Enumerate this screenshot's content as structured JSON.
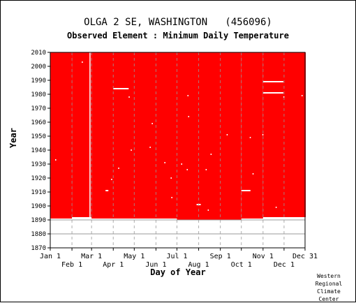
{
  "chart_data": {
    "type": "heatmap",
    "title": "OLGA 2 SE, WASHINGTON   (456096)",
    "subtitle": "Observed Element : Minimum Daily Temperature",
    "xlabel": "Day of Year",
    "ylabel": "Year",
    "xlim": [
      1,
      365
    ],
    "ylim": [
      1870,
      2010
    ],
    "y_ticks": [
      1870,
      1880,
      1890,
      1900,
      1910,
      1920,
      1930,
      1940,
      1950,
      1960,
      1970,
      1980,
      1990,
      2000,
      2010
    ],
    "x_ticks_row1": [
      {
        "label": "Jan 1",
        "day": 1
      },
      {
        "label": "Mar 1",
        "day": 60
      },
      {
        "label": "May 1",
        "day": 121
      },
      {
        "label": "Jul 1",
        "day": 182
      },
      {
        "label": "Sep 1",
        "day": 244
      },
      {
        "label": "Nov 1",
        "day": 305
      },
      {
        "label": "Dec 31",
        "day": 365
      }
    ],
    "x_ticks_row2": [
      {
        "label": "Feb 1",
        "day": 32
      },
      {
        "label": "Apr 1",
        "day": 91
      },
      {
        "label": "Jun 1",
        "day": 152
      },
      {
        "label": "Aug 1",
        "day": 213
      },
      {
        "label": "Oct 1",
        "day": 274
      },
      {
        "label": "Dec 1",
        "day": 335
      }
    ],
    "record_start": [
      {
        "day_start": 1,
        "day_end": 31,
        "year": 1891
      },
      {
        "day_start": 32,
        "day_end": 59,
        "year": 1892
      },
      {
        "day_start": 60,
        "day_end": 181,
        "year": 1891
      },
      {
        "day_start": 182,
        "day_end": 273,
        "year": 1890
      },
      {
        "day_start": 274,
        "day_end": 304,
        "year": 1891
      },
      {
        "day_start": 305,
        "day_end": 365,
        "year": 1892
      }
    ],
    "record_end_year": 2010,
    "missing_data": [
      {
        "day_start": 57,
        "day_end": 58,
        "year_start": 1891,
        "year_end": 2010
      },
      {
        "day_start": 91,
        "day_end": 113,
        "year_start": 1984,
        "year_end": 1984
      },
      {
        "day_start": 305,
        "day_end": 334,
        "year_start": 1989,
        "year_end": 1989
      },
      {
        "day_start": 305,
        "day_end": 334,
        "year_start": 1981,
        "year_end": 1981
      },
      {
        "day_start": 334,
        "day_end": 335,
        "year_start": 1978,
        "year_end": 1978
      },
      {
        "day_start": 274,
        "day_end": 287,
        "year_start": 1911,
        "year_end": 1911
      },
      {
        "day_start": 210,
        "day_end": 216,
        "year_start": 1901,
        "year_end": 1901
      },
      {
        "day_start": 80,
        "day_end": 84,
        "year_start": 1911,
        "year_end": 1911
      },
      {
        "day_start": 305,
        "day_end": 365,
        "year_start": 1891,
        "year_end": 1891
      },
      {
        "day_start": 304,
        "day_end": 305,
        "year_start": 1951,
        "year_end": 1951
      },
      {
        "day_start": 46,
        "day_end": 47,
        "year_start": 2003,
        "year_end": 2003
      },
      {
        "day_start": 360,
        "day_end": 361,
        "year_start": 1979,
        "year_end": 1979
      },
      {
        "day_start": 197,
        "day_end": 198,
        "year_start": 1979,
        "year_end": 1979
      },
      {
        "day_start": 198,
        "day_end": 199,
        "year_start": 1964,
        "year_end": 1964
      },
      {
        "day_start": 146,
        "day_end": 147,
        "year_start": 1959,
        "year_end": 1959
      },
      {
        "day_start": 143,
        "day_end": 144,
        "year_start": 1942,
        "year_end": 1942
      },
      {
        "day_start": 116,
        "day_end": 117,
        "year_start": 1940,
        "year_end": 1940
      },
      {
        "day_start": 8,
        "day_end": 9,
        "year_start": 1933,
        "year_end": 1933
      },
      {
        "day_start": 164,
        "day_end": 165,
        "year_start": 1931,
        "year_end": 1931
      },
      {
        "day_start": 188,
        "day_end": 189,
        "year_start": 1930,
        "year_end": 1930
      },
      {
        "day_start": 98,
        "day_end": 99,
        "year_start": 1927,
        "year_end": 1927
      },
      {
        "day_start": 223,
        "day_end": 224,
        "year_start": 1926,
        "year_end": 1926
      },
      {
        "day_start": 196,
        "day_end": 197,
        "year_start": 1926,
        "year_end": 1926
      },
      {
        "day_start": 290,
        "day_end": 291,
        "year_start": 1923,
        "year_end": 1923
      },
      {
        "day_start": 173,
        "day_end": 174,
        "year_start": 1920,
        "year_end": 1920
      },
      {
        "day_start": 88,
        "day_end": 89,
        "year_start": 1919,
        "year_end": 1919
      },
      {
        "day_start": 253,
        "day_end": 254,
        "year_start": 1951,
        "year_end": 1951
      },
      {
        "day_start": 230,
        "day_end": 231,
        "year_start": 1937,
        "year_end": 1937
      },
      {
        "day_start": 286,
        "day_end": 287,
        "year_start": 1949,
        "year_end": 1949
      },
      {
        "day_start": 323,
        "day_end": 324,
        "year_start": 1899,
        "year_end": 1899
      },
      {
        "day_start": 226,
        "day_end": 227,
        "year_start": 1897,
        "year_end": 1897
      },
      {
        "day_start": 174,
        "day_end": 175,
        "year_start": 1906,
        "year_end": 1906
      },
      {
        "day_start": 113,
        "day_end": 114,
        "year_start": 1978,
        "year_end": 1978
      }
    ],
    "colors": {
      "data_present": "#ff0000",
      "no_data": "#ffffff",
      "gridline": "#999999",
      "axis": "#000000"
    },
    "grid": true
  },
  "credit": [
    "Western",
    "Regional",
    "Climate",
    "Center"
  ]
}
